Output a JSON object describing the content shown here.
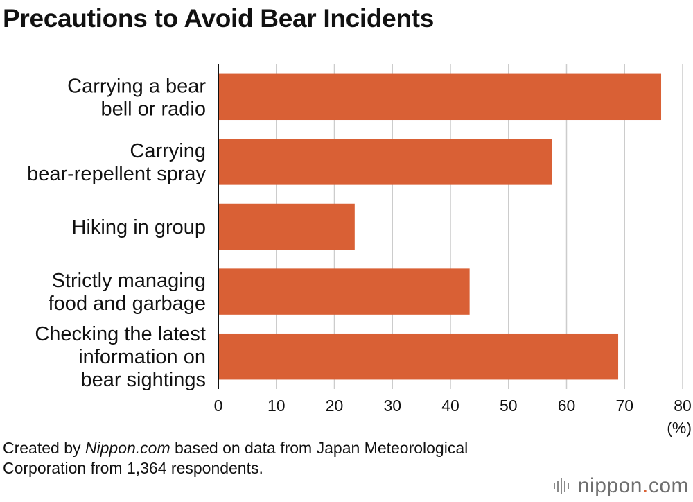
{
  "chart_data": {
    "type": "bar",
    "orientation": "horizontal",
    "title": "Precautions to Avoid Bear Incidents",
    "categories": [
      [
        "Carrying a bear",
        "bell or radio"
      ],
      [
        "Carrying",
        "bear-repellent spray"
      ],
      [
        "Hiking in group"
      ],
      [
        "Strictly managing",
        "food and garbage"
      ],
      [
        "Checking the latest",
        "information on",
        "bear sightings"
      ]
    ],
    "values": [
      76.3,
      57.5,
      23.5,
      43.3,
      68.9
    ],
    "xlim": [
      0,
      80
    ],
    "xticks": [
      0,
      10,
      20,
      30,
      40,
      50,
      60,
      70,
      80
    ],
    "x_unit": "(%)",
    "grid": "vertical",
    "bar_color": "#d96035"
  },
  "source": {
    "prefix": "Created by ",
    "site": "Nippon.com",
    "suffix": " based on data from Japan Meteorological Corporation from 1,364 respondents."
  },
  "logo": {
    "name": "nippon",
    "dot": ".",
    "tld": "com"
  }
}
